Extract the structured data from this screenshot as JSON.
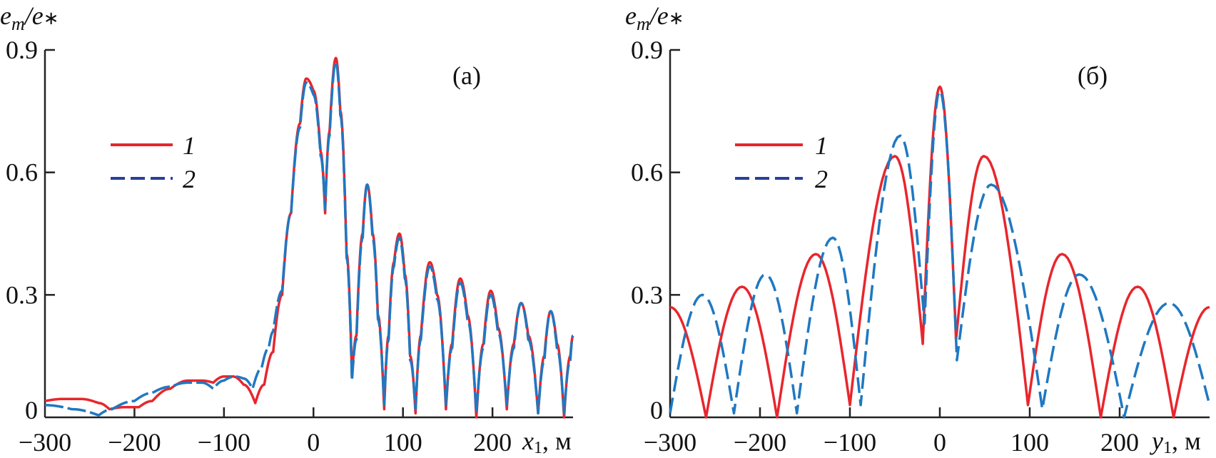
{
  "chart_data": [
    {
      "type": "line",
      "panel_label": "(a)",
      "ylabel_main": "e",
      "ylabel_sub_m": "m",
      "ylabel_slash": "/e",
      "ylabel_star": "∗",
      "xlabel_var": "x",
      "xlabel_sub": "1",
      "xlabel_unit": ", м",
      "xlim": [
        -300,
        290
      ],
      "ylim": [
        0,
        0.9
      ],
      "xticks": [
        "−300",
        "−200",
        "−100",
        "0",
        "100",
        "200"
      ],
      "xtick_values": [
        -300,
        -200,
        -100,
        0,
        100,
        200
      ],
      "yticks": [
        "0",
        "0.3",
        "0.6",
        "0.9"
      ],
      "ytick_values": [
        0,
        0.3,
        0.6,
        0.9
      ],
      "legend": [
        "1",
        "2"
      ],
      "legend_position": "upper-left",
      "series": [
        {
          "name": "1",
          "color": "#e8262d",
          "style": "solid",
          "x": [
            -300,
            -280,
            -260,
            -240,
            -228,
            -210,
            -195,
            -180,
            -160,
            -140,
            -125,
            -112,
            -100,
            -90,
            -78,
            -65,
            -55,
            -45,
            -35,
            -25,
            -15,
            -8,
            0,
            8,
            13,
            18,
            25,
            30,
            37,
            43,
            48,
            55,
            60,
            66,
            72,
            79,
            84,
            90,
            96,
            102,
            108,
            114,
            120,
            130,
            138,
            148,
            155,
            164,
            172,
            182,
            190,
            198,
            206,
            216,
            224,
            232,
            240,
            251,
            258,
            265,
            272,
            280,
            287,
            290
          ],
          "y": [
            0.04,
            0.045,
            0.045,
            0.035,
            0.02,
            0.025,
            0.025,
            0.04,
            0.07,
            0.09,
            0.09,
            0.085,
            0.1,
            0.1,
            0.08,
            0.035,
            0.08,
            0.16,
            0.3,
            0.5,
            0.72,
            0.83,
            0.8,
            0.65,
            0.5,
            0.7,
            0.88,
            0.75,
            0.4,
            0.1,
            0.2,
            0.45,
            0.57,
            0.45,
            0.25,
            0.02,
            0.2,
            0.38,
            0.45,
            0.35,
            0.15,
            0.01,
            0.2,
            0.38,
            0.3,
            0.02,
            0.18,
            0.34,
            0.25,
            0.0,
            0.18,
            0.31,
            0.22,
            0.02,
            0.18,
            0.28,
            0.2,
            0.01,
            0.15,
            0.26,
            0.18,
            0.0,
            0.15,
            0.2
          ]
        },
        {
          "name": "2",
          "color": "#1f78c1",
          "style": "dashed",
          "x": [
            -300,
            -270,
            -240,
            -225,
            -200,
            -180,
            -160,
            -140,
            -125,
            -112,
            -100,
            -88,
            -78,
            -68,
            -58,
            -50,
            -45,
            -35,
            -25,
            -15,
            -8,
            0,
            8,
            13,
            18,
            25,
            30,
            37,
            43,
            48,
            55,
            60,
            66,
            72,
            79,
            84,
            90,
            96,
            102,
            108,
            114,
            120,
            130,
            138,
            148,
            155,
            164,
            172,
            182,
            190,
            198,
            206,
            216,
            224,
            232,
            240,
            251,
            258,
            265,
            272,
            280,
            287,
            290
          ],
          "y": [
            0.03,
            0.02,
            0.005,
            0.02,
            0.04,
            0.06,
            0.075,
            0.085,
            0.085,
            0.07,
            0.09,
            0.1,
            0.095,
            0.07,
            0.12,
            0.17,
            0.21,
            0.31,
            0.5,
            0.71,
            0.82,
            0.79,
            0.64,
            0.51,
            0.69,
            0.87,
            0.74,
            0.39,
            0.09,
            0.19,
            0.44,
            0.57,
            0.44,
            0.24,
            0.03,
            0.19,
            0.37,
            0.44,
            0.34,
            0.14,
            0.02,
            0.19,
            0.37,
            0.29,
            0.03,
            0.17,
            0.33,
            0.24,
            0.01,
            0.17,
            0.3,
            0.21,
            0.03,
            0.17,
            0.28,
            0.19,
            0.01,
            0.14,
            0.26,
            0.17,
            0.01,
            0.14,
            0.2
          ]
        }
      ]
    },
    {
      "type": "line",
      "panel_label": "(б)",
      "ylabel_main": "e",
      "ylabel_sub_m": "m",
      "ylabel_slash": "/e",
      "ylabel_star": "∗",
      "xlabel_var": "y",
      "xlabel_sub": "1",
      "xlabel_unit": ", м",
      "xlim": [
        -300,
        300
      ],
      "ylim": [
        0,
        0.9
      ],
      "xticks": [
        "−300",
        "−200",
        "−100",
        "0",
        "100",
        "200"
      ],
      "xtick_values": [
        -300,
        -200,
        -100,
        0,
        100,
        200
      ],
      "yticks": [
        "0",
        "0.3",
        "0.6",
        "0.9"
      ],
      "ytick_values": [
        0,
        0.3,
        0.6,
        0.9
      ],
      "legend": [
        "1",
        "2"
      ],
      "legend_position": "upper-left",
      "series": [
        {
          "name": "1",
          "color": "#e8262d",
          "style": "solid",
          "x": [
            -300,
            -260,
            -220,
            -181,
            -138,
            -100,
            -50,
            -19,
            0,
            18,
            49,
            98,
            136,
            179,
            220,
            260,
            300
          ],
          "y": [
            0.27,
            0.0,
            0.32,
            0.0,
            0.4,
            0.03,
            0.64,
            0.18,
            0.81,
            0.19,
            0.64,
            0.03,
            0.4,
            0.0,
            0.32,
            0.0,
            0.27
          ]
        },
        {
          "name": "2",
          "color": "#1f78c1",
          "style": "dashed",
          "x": [
            -300,
            -264,
            -229,
            -194,
            -159,
            -119,
            -88,
            -44,
            -17,
            0,
            19,
            57,
            114,
            155,
            205,
            255,
            300
          ],
          "y": [
            0.01,
            0.3,
            0.01,
            0.35,
            0.01,
            0.44,
            0.03,
            0.69,
            0.23,
            0.8,
            0.14,
            0.57,
            0.02,
            0.35,
            0.0,
            0.28,
            0.03
          ]
        }
      ]
    }
  ]
}
